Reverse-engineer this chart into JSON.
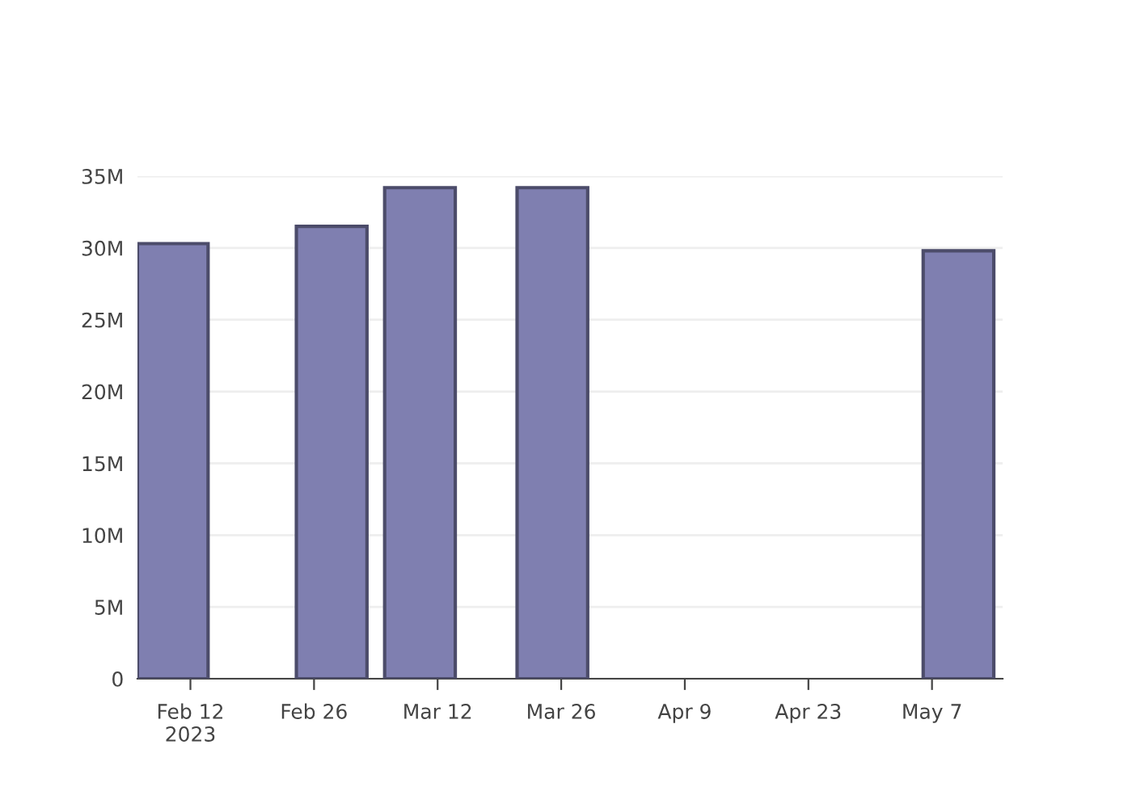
{
  "chart_data": {
    "type": "bar",
    "x": [
      "2023-02-10",
      "2023-02-28",
      "2023-03-10",
      "2023-03-25",
      "2023-05-10"
    ],
    "values": [
      30300000,
      31500000,
      34200000,
      34200000,
      29800000
    ],
    "color": "#7f7fb0",
    "xlim": [
      "2023-02-06",
      "2023-05-15"
    ],
    "xticks": [
      {
        "value": "2023-02-12",
        "label": "Feb 12\n2023"
      },
      {
        "value": "2023-02-26",
        "label": "Feb 26"
      },
      {
        "value": "2023-03-12",
        "label": "Mar 12"
      },
      {
        "value": "2023-03-26",
        "label": "Mar 26"
      },
      {
        "value": "2023-04-09",
        "label": "Apr 9"
      },
      {
        "value": "2023-04-23",
        "label": "Apr 23"
      },
      {
        "value": "2023-05-07",
        "label": "May 7"
      }
    ],
    "ylim": [
      0,
      35000000
    ],
    "yticks": [
      0,
      {
        "value": 5000000,
        "label": "5M"
      },
      {
        "value": 10000000,
        "label": "10M"
      },
      {
        "value": 15000000,
        "label": "15M"
      },
      {
        "value": 20000000,
        "label": "20M"
      },
      {
        "value": 25000000,
        "label": "25M"
      },
      {
        "value": 30000000,
        "label": "30M"
      },
      {
        "value": 35000000,
        "label": "35M"
      }
    ],
    "grid": "y"
  }
}
